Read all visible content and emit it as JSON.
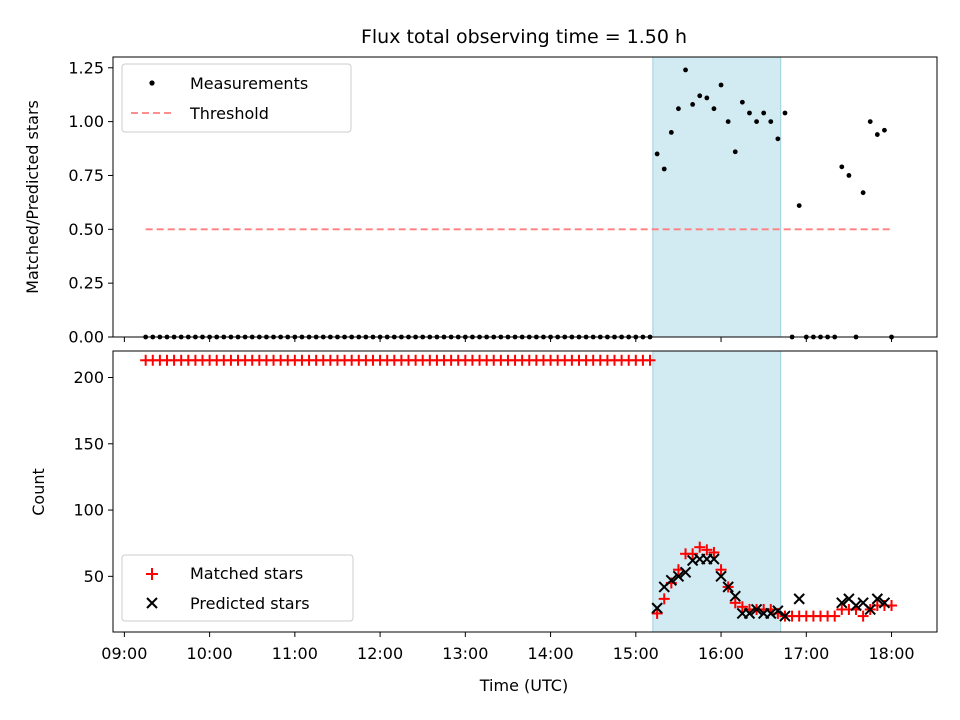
{
  "chart_data": [
    {
      "type": "scatter",
      "title": "Flux total observing time = 1.50 h",
      "xlabel": "",
      "ylabel": "Matched/Predicted stars",
      "ylim": [
        0,
        1.3
      ],
      "yticks": [
        "0.00",
        "0.25",
        "0.50",
        "0.75",
        "1.00",
        "1.25"
      ],
      "grid": false,
      "legend_position": "top-left",
      "shaded_interval": {
        "start": "15:12",
        "end": "16:42",
        "color": "#add8e6"
      },
      "series": [
        {
          "name": "Measurements",
          "marker": "dot",
          "color": "#000000",
          "points": [
            [
              "09:15",
              0
            ],
            [
              "09:20",
              0
            ],
            [
              "09:25",
              0
            ],
            [
              "09:30",
              0
            ],
            [
              "09:35",
              0
            ],
            [
              "09:40",
              0
            ],
            [
              "09:45",
              0
            ],
            [
              "09:50",
              0
            ],
            [
              "09:55",
              0
            ],
            [
              "10:00",
              0
            ],
            [
              "10:05",
              0
            ],
            [
              "10:10",
              0
            ],
            [
              "10:15",
              0
            ],
            [
              "10:20",
              0
            ],
            [
              "10:25",
              0
            ],
            [
              "10:30",
              0
            ],
            [
              "10:35",
              0
            ],
            [
              "10:40",
              0
            ],
            [
              "10:45",
              0
            ],
            [
              "10:50",
              0
            ],
            [
              "10:55",
              0
            ],
            [
              "11:00",
              0
            ],
            [
              "11:05",
              0
            ],
            [
              "11:10",
              0
            ],
            [
              "11:15",
              0
            ],
            [
              "11:20",
              0
            ],
            [
              "11:25",
              0
            ],
            [
              "11:30",
              0
            ],
            [
              "11:35",
              0
            ],
            [
              "11:40",
              0
            ],
            [
              "11:45",
              0
            ],
            [
              "11:50",
              0
            ],
            [
              "11:55",
              0
            ],
            [
              "12:00",
              0
            ],
            [
              "12:05",
              0
            ],
            [
              "12:10",
              0
            ],
            [
              "12:15",
              0
            ],
            [
              "12:20",
              0
            ],
            [
              "12:25",
              0
            ],
            [
              "12:30",
              0
            ],
            [
              "12:35",
              0
            ],
            [
              "12:40",
              0
            ],
            [
              "12:45",
              0
            ],
            [
              "12:50",
              0
            ],
            [
              "12:55",
              0
            ],
            [
              "13:00",
              0
            ],
            [
              "13:05",
              0
            ],
            [
              "13:10",
              0
            ],
            [
              "13:15",
              0
            ],
            [
              "13:20",
              0
            ],
            [
              "13:25",
              0
            ],
            [
              "13:30",
              0
            ],
            [
              "13:35",
              0
            ],
            [
              "13:40",
              0
            ],
            [
              "13:45",
              0
            ],
            [
              "13:50",
              0
            ],
            [
              "13:55",
              0
            ],
            [
              "14:00",
              0
            ],
            [
              "14:05",
              0
            ],
            [
              "14:10",
              0
            ],
            [
              "14:15",
              0
            ],
            [
              "14:20",
              0
            ],
            [
              "14:25",
              0
            ],
            [
              "14:30",
              0
            ],
            [
              "14:35",
              0
            ],
            [
              "14:40",
              0
            ],
            [
              "14:45",
              0
            ],
            [
              "14:50",
              0
            ],
            [
              "14:55",
              0
            ],
            [
              "15:00",
              0
            ],
            [
              "15:05",
              0
            ],
            [
              "15:10",
              0
            ],
            [
              "15:15",
              0.85
            ],
            [
              "15:20",
              0.78
            ],
            [
              "15:25",
              0.95
            ],
            [
              "15:30",
              1.06
            ],
            [
              "15:35",
              1.24
            ],
            [
              "15:40",
              1.08
            ],
            [
              "15:45",
              1.12
            ],
            [
              "15:50",
              1.11
            ],
            [
              "15:55",
              1.06
            ],
            [
              "16:00",
              1.17
            ],
            [
              "16:05",
              1.0
            ],
            [
              "16:10",
              0.86
            ],
            [
              "16:15",
              1.09
            ],
            [
              "16:20",
              1.04
            ],
            [
              "16:25",
              1.0
            ],
            [
              "16:30",
              1.04
            ],
            [
              "16:35",
              1.0
            ],
            [
              "16:40",
              0.92
            ],
            [
              "16:45",
              1.04
            ],
            [
              "16:50",
              0
            ],
            [
              "16:55",
              0.61
            ],
            [
              "17:00",
              0
            ],
            [
              "17:05",
              0
            ],
            [
              "17:10",
              0
            ],
            [
              "17:15",
              0
            ],
            [
              "17:20",
              0
            ],
            [
              "17:25",
              0.79
            ],
            [
              "17:30",
              0.75
            ],
            [
              "17:35",
              0
            ],
            [
              "17:40",
              0.67
            ],
            [
              "17:45",
              1.0
            ],
            [
              "17:50",
              0.94
            ],
            [
              "17:55",
              0.96
            ],
            [
              "18:00",
              0
            ]
          ]
        },
        {
          "name": "Threshold",
          "marker": "dashed-line",
          "color": "#ff7f7f",
          "points": [
            [
              "09:15",
              0.5
            ],
            [
              "18:00",
              0.5
            ]
          ]
        }
      ]
    },
    {
      "type": "scatter",
      "title": "",
      "xlabel": "Time (UTC)",
      "ylabel": "Count",
      "ylim": [
        8,
        220
      ],
      "yticks": [
        "50",
        "100",
        "150",
        "200"
      ],
      "xticks": [
        "09:00",
        "10:00",
        "11:00",
        "12:00",
        "13:00",
        "14:00",
        "15:00",
        "16:00",
        "17:00",
        "18:00"
      ],
      "grid": false,
      "legend_position": "bottom-left",
      "shaded_interval": {
        "start": "15:12",
        "end": "16:42",
        "color": "#add8e6"
      },
      "series": [
        {
          "name": "Matched stars",
          "marker": "plus",
          "color": "#ff0000",
          "points": [
            [
              "09:15",
              213
            ],
            [
              "09:20",
              213
            ],
            [
              "09:25",
              213
            ],
            [
              "09:30",
              213
            ],
            [
              "09:35",
              213
            ],
            [
              "09:40",
              213
            ],
            [
              "09:45",
              213
            ],
            [
              "09:50",
              213
            ],
            [
              "09:55",
              213
            ],
            [
              "10:00",
              213
            ],
            [
              "10:05",
              213
            ],
            [
              "10:10",
              213
            ],
            [
              "10:15",
              213
            ],
            [
              "10:20",
              213
            ],
            [
              "10:25",
              213
            ],
            [
              "10:30",
              213
            ],
            [
              "10:35",
              213
            ],
            [
              "10:40",
              213
            ],
            [
              "10:45",
              213
            ],
            [
              "10:50",
              213
            ],
            [
              "10:55",
              213
            ],
            [
              "11:00",
              213
            ],
            [
              "11:05",
              213
            ],
            [
              "11:10",
              213
            ],
            [
              "11:15",
              213
            ],
            [
              "11:20",
              213
            ],
            [
              "11:25",
              213
            ],
            [
              "11:30",
              213
            ],
            [
              "11:35",
              213
            ],
            [
              "11:40",
              213
            ],
            [
              "11:45",
              213
            ],
            [
              "11:50",
              213
            ],
            [
              "11:55",
              213
            ],
            [
              "12:00",
              213
            ],
            [
              "12:05",
              213
            ],
            [
              "12:10",
              213
            ],
            [
              "12:15",
              213
            ],
            [
              "12:20",
              213
            ],
            [
              "12:25",
              213
            ],
            [
              "12:30",
              213
            ],
            [
              "12:35",
              213
            ],
            [
              "12:40",
              213
            ],
            [
              "12:45",
              213
            ],
            [
              "12:50",
              213
            ],
            [
              "12:55",
              213
            ],
            [
              "13:00",
              213
            ],
            [
              "13:05",
              213
            ],
            [
              "13:10",
              213
            ],
            [
              "13:15",
              213
            ],
            [
              "13:20",
              213
            ],
            [
              "13:25",
              213
            ],
            [
              "13:30",
              213
            ],
            [
              "13:35",
              213
            ],
            [
              "13:40",
              213
            ],
            [
              "13:45",
              213
            ],
            [
              "13:50",
              213
            ],
            [
              "13:55",
              213
            ],
            [
              "14:00",
              213
            ],
            [
              "14:05",
              213
            ],
            [
              "14:10",
              213
            ],
            [
              "14:15",
              213
            ],
            [
              "14:20",
              213
            ],
            [
              "14:25",
              213
            ],
            [
              "14:30",
              213
            ],
            [
              "14:35",
              213
            ],
            [
              "14:40",
              213
            ],
            [
              "14:45",
              213
            ],
            [
              "14:50",
              213
            ],
            [
              "14:55",
              213
            ],
            [
              "15:00",
              213
            ],
            [
              "15:05",
              213
            ],
            [
              "15:10",
              213
            ],
            [
              "15:15",
              22
            ],
            [
              "15:20",
              33
            ],
            [
              "15:25",
              45
            ],
            [
              "15:30",
              55
            ],
            [
              "15:35",
              67
            ],
            [
              "15:40",
              67
            ],
            [
              "15:45",
              72
            ],
            [
              "15:50",
              70
            ],
            [
              "15:55",
              68
            ],
            [
              "16:00",
              55
            ],
            [
              "16:05",
              42
            ],
            [
              "16:10",
              30
            ],
            [
              "16:15",
              27
            ],
            [
              "16:20",
              25
            ],
            [
              "16:25",
              25
            ],
            [
              "16:30",
              25
            ],
            [
              "16:35",
              25
            ],
            [
              "16:40",
              22
            ],
            [
              "16:45",
              20
            ],
            [
              "16:50",
              20
            ],
            [
              "16:55",
              20
            ],
            [
              "17:00",
              20
            ],
            [
              "17:05",
              20
            ],
            [
              "17:10",
              20
            ],
            [
              "17:15",
              20
            ],
            [
              "17:20",
              20
            ],
            [
              "17:25",
              25
            ],
            [
              "17:30",
              25
            ],
            [
              "17:35",
              25
            ],
            [
              "17:40",
              20
            ],
            [
              "17:45",
              25
            ],
            [
              "17:50",
              28
            ],
            [
              "17:55",
              28
            ],
            [
              "18:00",
              28
            ]
          ]
        },
        {
          "name": "Predicted stars",
          "marker": "x",
          "color": "#000000",
          "points": [
            [
              "15:15",
              26
            ],
            [
              "15:20",
              42
            ],
            [
              "15:25",
              47
            ],
            [
              "15:30",
              50
            ],
            [
              "15:35",
              53
            ],
            [
              "15:40",
              62
            ],
            [
              "15:45",
              63
            ],
            [
              "15:50",
              63
            ],
            [
              "15:55",
              63
            ],
            [
              "16:00",
              50
            ],
            [
              "16:05",
              42
            ],
            [
              "16:10",
              35
            ],
            [
              "16:15",
              22
            ],
            [
              "16:20",
              22
            ],
            [
              "16:25",
              25
            ],
            [
              "16:30",
              22
            ],
            [
              "16:35",
              22
            ],
            [
              "16:40",
              24
            ],
            [
              "16:45",
              20
            ],
            [
              "16:55",
              33
            ],
            [
              "17:25",
              30
            ],
            [
              "17:30",
              33
            ],
            [
              "17:35",
              28
            ],
            [
              "17:40",
              30
            ],
            [
              "17:45",
              25
            ],
            [
              "17:50",
              33
            ],
            [
              "17:55",
              30
            ]
          ]
        }
      ]
    }
  ]
}
